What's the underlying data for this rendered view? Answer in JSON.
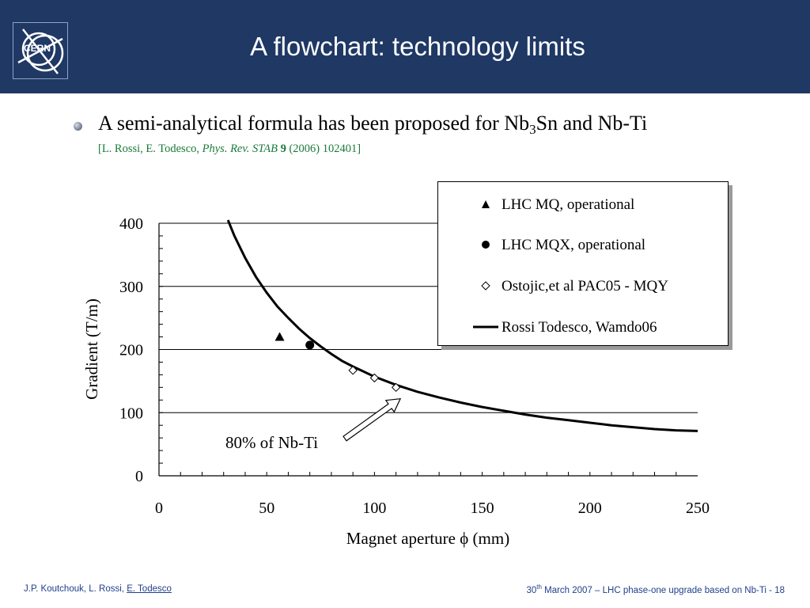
{
  "header": {
    "title": "A flowchart: technology limits",
    "logo_text": "CERN",
    "colors": {
      "background": "#1f3864",
      "title": "#ffffff"
    }
  },
  "bullet": {
    "text_before": "A semi-analytical formula has been proposed for Nb",
    "subscript": "3",
    "text_after": "Sn and Nb-Ti",
    "reference": {
      "open": "[L. Rossi, E. Todesco, ",
      "journal": "Phys. Rev. STAB",
      "volume": "9",
      "rest": " (2006) 102401]",
      "color": "#1a7a3a"
    }
  },
  "chart_data": {
    "type": "scatter",
    "title": "",
    "xlabel": "Magnet aperture ϕ (mm)",
    "ylabel": "Gradient  (T/m)",
    "xlim": [
      0,
      250
    ],
    "ylim": [
      0,
      400
    ],
    "x_ticks": [
      "0",
      "50",
      "100",
      "150",
      "200",
      "250"
    ],
    "y_ticks": [
      "0",
      "100",
      "200",
      "300",
      "400"
    ],
    "grid": "horizontal",
    "legend_position": "top-right",
    "series": [
      {
        "name": "LHC MQ, operational",
        "marker": "triangle",
        "points": [
          [
            56,
            220
          ]
        ]
      },
      {
        "name": "LHC MQX, operational",
        "marker": "circle",
        "points": [
          [
            70,
            207
          ]
        ]
      },
      {
        "name": "Ostojic,et al PAC05 - MQY",
        "marker": "diamond",
        "points": [
          [
            90,
            167
          ],
          [
            100,
            155
          ],
          [
            110,
            140
          ]
        ]
      },
      {
        "name": "Rossi Todesco, Wamdo06",
        "marker": "line",
        "points": [
          [
            32,
            410
          ],
          [
            35,
            380
          ],
          [
            40,
            345
          ],
          [
            45,
            315
          ],
          [
            50,
            290
          ],
          [
            55,
            268
          ],
          [
            60,
            250
          ],
          [
            65,
            233
          ],
          [
            70,
            218
          ],
          [
            75,
            205
          ],
          [
            80,
            193
          ],
          [
            85,
            182
          ],
          [
            90,
            173
          ],
          [
            95,
            165
          ],
          [
            100,
            157
          ],
          [
            110,
            144
          ],
          [
            120,
            133
          ],
          [
            130,
            124
          ],
          [
            140,
            116
          ],
          [
            150,
            109
          ],
          [
            160,
            103
          ],
          [
            170,
            97
          ],
          [
            180,
            92
          ],
          [
            190,
            88
          ],
          [
            200,
            84
          ],
          [
            210,
            80
          ],
          [
            220,
            77
          ],
          [
            230,
            74
          ],
          [
            240,
            72
          ],
          [
            250,
            71
          ]
        ]
      }
    ],
    "annotation": {
      "text": "80% of Nb-Ti",
      "points_to": [
        112,
        122
      ]
    }
  },
  "footer": {
    "authors": "J.P. Koutchouk, L. Rossi, ",
    "authors_underlined": "E. Todesco",
    "date_day": "30",
    "date_sup": "th",
    "date_rest": " March 2007 – LHC phase-one upgrade based on Nb-Ti  - 18",
    "color": "#1f3f8a"
  }
}
